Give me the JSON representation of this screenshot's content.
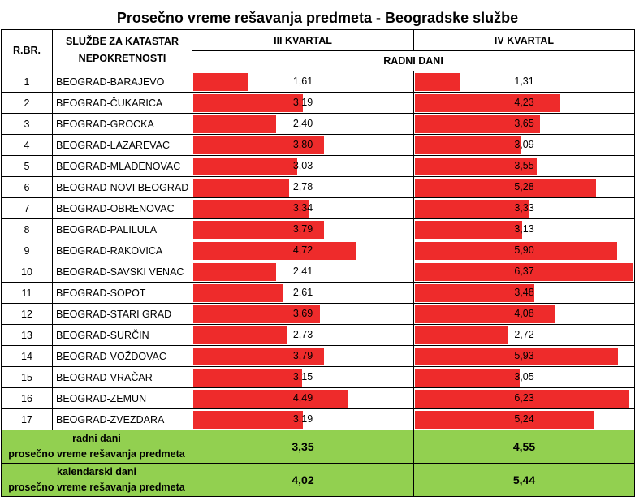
{
  "title": "Prosečno vreme rešavanja predmeta - Beogradske službe",
  "headers": {
    "rbr": "R.BR.",
    "service": "SLUŽBE ZA KATASTAR NEPOKRETNOSTI",
    "q3": "III KVARTAL",
    "q4": "IV KVARTAL",
    "unit": "RADNI DANI"
  },
  "bar_color": "#ee2b2b",
  "summary_color": "#92d050",
  "bar_scale_max": 6.37,
  "rows": [
    {
      "n": "1",
      "name": "BEOGRAD-BARAJEVO",
      "q3": "1,61",
      "q4": "1,31",
      "q3v": 1.61,
      "q4v": 1.31
    },
    {
      "n": "2",
      "name": "BEOGRAD-ČUKARICA",
      "q3": "3,19",
      "q4": "4,23",
      "q3v": 3.19,
      "q4v": 4.23
    },
    {
      "n": "3",
      "name": "BEOGRAD-GROCKA",
      "q3": "2,40",
      "q4": "3,65",
      "q3v": 2.4,
      "q4v": 3.65
    },
    {
      "n": "4",
      "name": "BEOGRAD-LAZAREVAC",
      "q3": "3,80",
      "q4": "3,09",
      "q3v": 3.8,
      "q4v": 3.09
    },
    {
      "n": "5",
      "name": "BEOGRAD-MLADENOVAC",
      "q3": "3,03",
      "q4": "3,55",
      "q3v": 3.03,
      "q4v": 3.55
    },
    {
      "n": "6",
      "name": "BEOGRAD-NOVI BEOGRAD",
      "q3": "2,78",
      "q4": "5,28",
      "q3v": 2.78,
      "q4v": 5.28
    },
    {
      "n": "7",
      "name": "BEOGRAD-OBRENOVAC",
      "q3": "3,34",
      "q4": "3,33",
      "q3v": 3.34,
      "q4v": 3.33
    },
    {
      "n": "8",
      "name": "BEOGRAD-PALILULA",
      "q3": "3,79",
      "q4": "3,13",
      "q3v": 3.79,
      "q4v": 3.13
    },
    {
      "n": "9",
      "name": "BEOGRAD-RAKOVICA",
      "q3": "4,72",
      "q4": "5,90",
      "q3v": 4.72,
      "q4v": 5.9
    },
    {
      "n": "10",
      "name": "BEOGRAD-SAVSKI VENAC",
      "q3": "2,41",
      "q4": "6,37",
      "q3v": 2.41,
      "q4v": 6.37
    },
    {
      "n": "11",
      "name": "BEOGRAD-SOPOT",
      "q3": "2,61",
      "q4": "3,48",
      "q3v": 2.61,
      "q4v": 3.48
    },
    {
      "n": "12",
      "name": "BEOGRAD-STARI GRAD",
      "q3": "3,69",
      "q4": "4,08",
      "q3v": 3.69,
      "q4v": 4.08
    },
    {
      "n": "13",
      "name": "BEOGRAD-SURČIN",
      "q3": "2,73",
      "q4": "2,72",
      "q3v": 2.73,
      "q4v": 2.72
    },
    {
      "n": "14",
      "name": "BEOGRAD-VOŽDOVAC",
      "q3": "3,79",
      "q4": "5,93",
      "q3v": 3.79,
      "q4v": 5.93
    },
    {
      "n": "15",
      "name": "BEOGRAD-VRAČAR",
      "q3": "3,15",
      "q4": "3,05",
      "q3v": 3.15,
      "q4v": 3.05
    },
    {
      "n": "16",
      "name": "BEOGRAD-ZEMUN",
      "q3": "4,49",
      "q4": "6,23",
      "q3v": 4.49,
      "q4v": 6.23
    },
    {
      "n": "17",
      "name": "BEOGRAD-ZVEZDARA",
      "q3": "3,19",
      "q4": "5,24",
      "q3v": 3.19,
      "q4v": 5.24
    }
  ],
  "summary": [
    {
      "label_line1": "radni dani",
      "label_line2": "prosečno vreme rešavanja predmeta",
      "q3": "3,35",
      "q4": "4,55"
    },
    {
      "label_line1": "kalendarski dani",
      "label_line2": "prosečno vreme rešavanja predmeta",
      "q3": "4,02",
      "q4": "5,44"
    }
  ]
}
